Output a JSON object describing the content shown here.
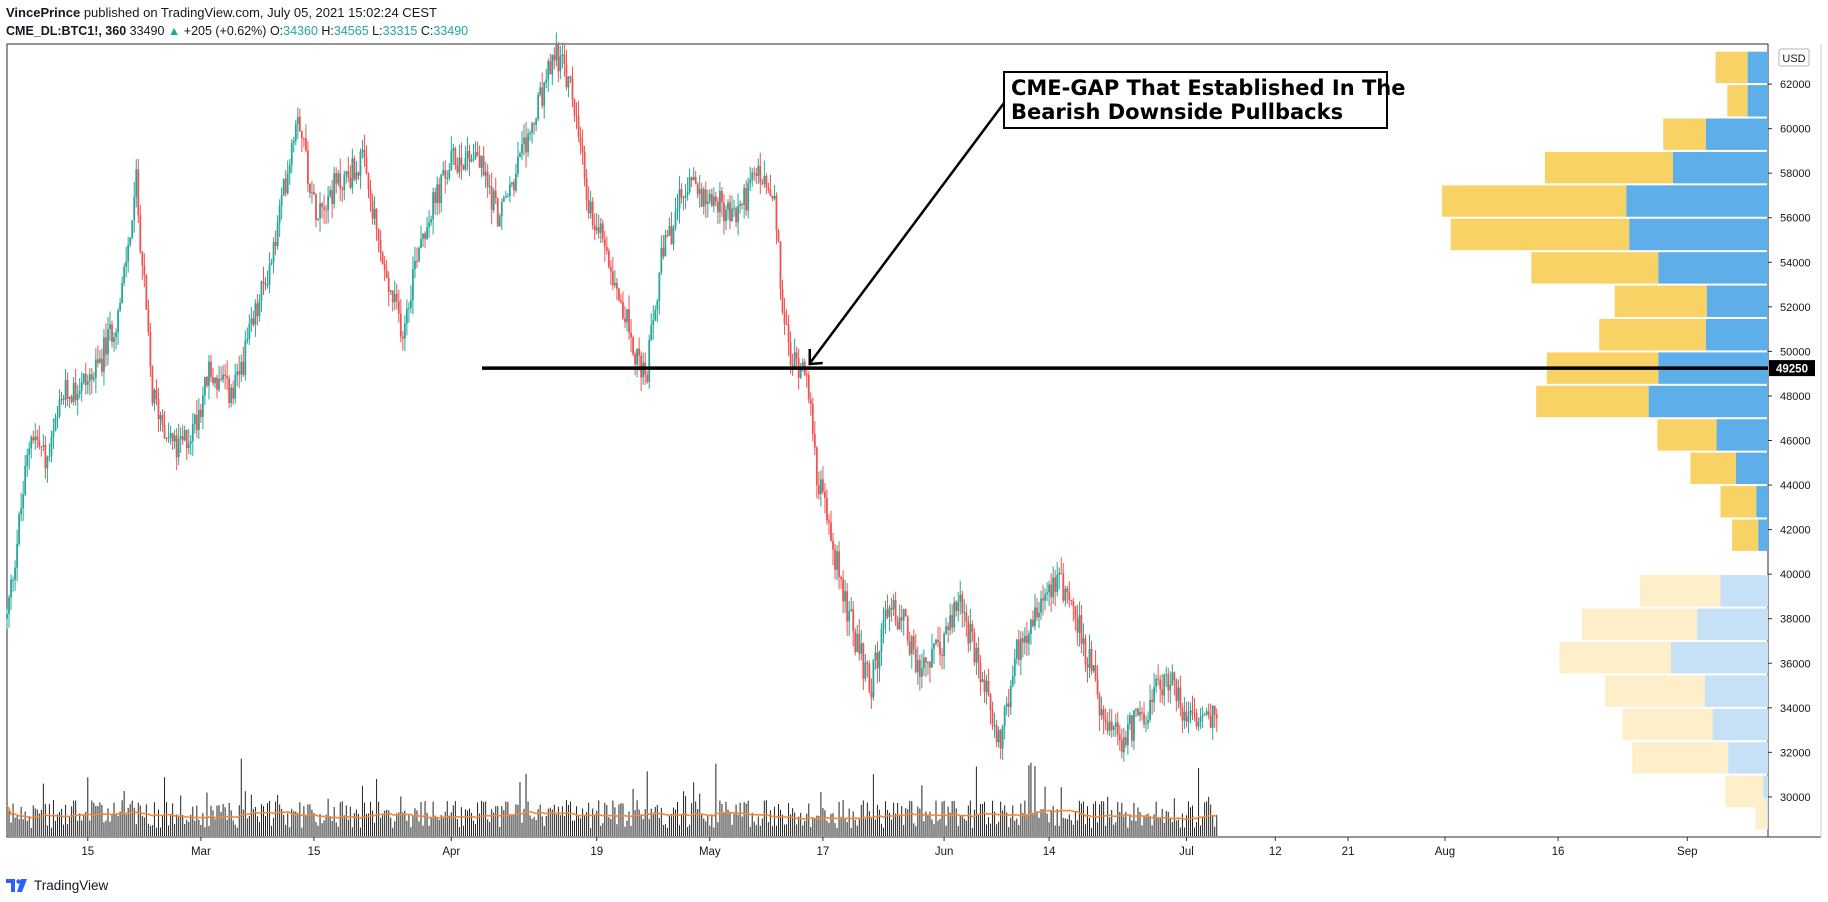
{
  "header": {
    "author": "VincePrince",
    "published_text": "published on TradingView.com, July 05, 2021 15:02:24 CEST",
    "symbol": "CME_DL:BTC1!, 360",
    "last": "33490",
    "change": "+205 (+0.62%)",
    "open_label": "O:",
    "open": "34360",
    "high_label": "H:",
    "high": "34565",
    "low_label": "L:",
    "low": "33315",
    "close_label": "C:",
    "close": "33490"
  },
  "footer": {
    "brand": "TradingView"
  },
  "colors": {
    "up": "#26a69a",
    "down": "#ef5350",
    "vp_up": "#5eaeea",
    "vp_down": "#f9d265",
    "vp_up_light": "#c6e1f5",
    "vp_down_light": "#fdefc9",
    "ma": "#f08a3c",
    "volume": "#222222"
  },
  "chart_data": {
    "type": "candlestick",
    "currency": "USD",
    "y_range": [
      28400,
      63500
    ],
    "y_ticks": [
      30000,
      32000,
      34000,
      36000,
      38000,
      40000,
      42000,
      44000,
      46000,
      48000,
      50000,
      52000,
      54000,
      56000,
      58000,
      60000,
      62000
    ],
    "x_ticks": [
      {
        "label": "15",
        "date": "2021-02-15"
      },
      {
        "label": "Mar",
        "date": "2021-03-01"
      },
      {
        "label": "15",
        "date": "2021-03-15"
      },
      {
        "label": "Apr",
        "date": "2021-04-01"
      },
      {
        "label": "19",
        "date": "2021-04-19"
      },
      {
        "label": "May",
        "date": "2021-05-03"
      },
      {
        "label": "17",
        "date": "2021-05-17"
      },
      {
        "label": "Jun",
        "date": "2021-06-01"
      },
      {
        "label": "14",
        "date": "2021-06-14"
      },
      {
        "label": "Jul",
        "date": "2021-07-01"
      },
      {
        "label": "12",
        "date": "2021-07-12"
      },
      {
        "label": "21",
        "date": "2021-07-21"
      },
      {
        "label": "Aug",
        "date": "2021-08-02"
      },
      {
        "label": "16",
        "date": "2021-08-16"
      },
      {
        "label": "Sep",
        "date": "2021-09-01"
      }
    ],
    "price_path": [
      {
        "date": "2021-02-05",
        "price": 38000
      },
      {
        "date": "2021-02-08",
        "price": 46500
      },
      {
        "date": "2021-02-10",
        "price": 45000
      },
      {
        "date": "2021-02-12",
        "price": 48000
      },
      {
        "date": "2021-02-16",
        "price": 49000
      },
      {
        "date": "2021-02-19",
        "price": 52000
      },
      {
        "date": "2021-02-21",
        "price": 57500
      },
      {
        "date": "2021-02-23",
        "price": 48000
      },
      {
        "date": "2021-02-26",
        "price": 45500
      },
      {
        "date": "2021-02-28",
        "price": 46500
      },
      {
        "date": "2021-03-02",
        "price": 49000
      },
      {
        "date": "2021-03-05",
        "price": 48000
      },
      {
        "date": "2021-03-10",
        "price": 54500
      },
      {
        "date": "2021-03-13",
        "price": 61000
      },
      {
        "date": "2021-03-15",
        "price": 56500
      },
      {
        "date": "2021-03-18",
        "price": 57500
      },
      {
        "date": "2021-03-21",
        "price": 58500
      },
      {
        "date": "2021-03-24",
        "price": 53000
      },
      {
        "date": "2021-03-26",
        "price": 51000
      },
      {
        "date": "2021-03-28",
        "price": 55000
      },
      {
        "date": "2021-04-01",
        "price": 58500
      },
      {
        "date": "2021-04-04",
        "price": 59000
      },
      {
        "date": "2021-04-07",
        "price": 56000
      },
      {
        "date": "2021-04-09",
        "price": 58000
      },
      {
        "date": "2021-04-11",
        "price": 60000
      },
      {
        "date": "2021-04-14",
        "price": 63500
      },
      {
        "date": "2021-04-16",
        "price": 61500
      },
      {
        "date": "2021-04-18",
        "price": 56500
      },
      {
        "date": "2021-04-20",
        "price": 55000
      },
      {
        "date": "2021-04-23",
        "price": 51000
      },
      {
        "date": "2021-04-25",
        "price": 48500
      },
      {
        "date": "2021-04-27",
        "price": 54000
      },
      {
        "date": "2021-04-30",
        "price": 57500
      },
      {
        "date": "2021-05-03",
        "price": 57000
      },
      {
        "date": "2021-05-06",
        "price": 56000
      },
      {
        "date": "2021-05-09",
        "price": 58000
      },
      {
        "date": "2021-05-11",
        "price": 56500
      },
      {
        "date": "2021-05-12",
        "price": 52000
      },
      {
        "date": "2021-05-13",
        "price": 49500
      },
      {
        "date": "2021-05-15",
        "price": 49500
      },
      {
        "date": "2021-05-16",
        "price": 45000
      },
      {
        "date": "2021-05-19",
        "price": 40000
      },
      {
        "date": "2021-05-21",
        "price": 37000
      },
      {
        "date": "2021-05-23",
        "price": 35000
      },
      {
        "date": "2021-05-25",
        "price": 38500
      },
      {
        "date": "2021-05-27",
        "price": 38000
      },
      {
        "date": "2021-05-29",
        "price": 35500
      },
      {
        "date": "2021-06-01",
        "price": 37000
      },
      {
        "date": "2021-06-03",
        "price": 39000
      },
      {
        "date": "2021-06-05",
        "price": 36000
      },
      {
        "date": "2021-06-08",
        "price": 32500
      },
      {
        "date": "2021-06-10",
        "price": 36500
      },
      {
        "date": "2021-06-13",
        "price": 39000
      },
      {
        "date": "2021-06-15",
        "price": 40000
      },
      {
        "date": "2021-06-17",
        "price": 38500
      },
      {
        "date": "2021-06-19",
        "price": 36000
      },
      {
        "date": "2021-06-21",
        "price": 33000
      },
      {
        "date": "2021-06-23",
        "price": 32500
      },
      {
        "date": "2021-06-25",
        "price": 33500
      },
      {
        "date": "2021-06-27",
        "price": 34500
      },
      {
        "date": "2021-06-29",
        "price": 35500
      },
      {
        "date": "2021-07-01",
        "price": 33500
      },
      {
        "date": "2021-07-02",
        "price": 33400
      },
      {
        "date": "2021-07-05",
        "price": 33490
      }
    ],
    "gap_level": 49250,
    "gap_level_label": "49250",
    "annotation": {
      "lines": [
        "CME-GAP That Established In The",
        "Bearish Downside Pullbacks"
      ],
      "arrow_date": "2021-05-15",
      "arrow_price": 49300
    },
    "volume_profile": {
      "upper_session": [
        {
          "price": 62750,
          "up": 21,
          "down": 33
        },
        {
          "price": 61250,
          "up": 21,
          "down": 21
        },
        {
          "price": 59750,
          "up": 64,
          "down": 44
        },
        {
          "price": 58250,
          "up": 98,
          "down": 132
        },
        {
          "price": 56750,
          "up": 146,
          "down": 190
        },
        {
          "price": 55250,
          "up": 143,
          "down": 184
        },
        {
          "price": 53750,
          "up": 113,
          "down": 131
        },
        {
          "price": 52250,
          "up": 63,
          "down": 95
        },
        {
          "price": 50750,
          "up": 64,
          "down": 110
        },
        {
          "price": 49250,
          "up": 113,
          "down": 115
        },
        {
          "price": 47750,
          "up": 123,
          "down": 116
        },
        {
          "price": 46250,
          "up": 53,
          "down": 61
        },
        {
          "price": 44750,
          "up": 33,
          "down": 47
        },
        {
          "price": 43250,
          "up": 12,
          "down": 37
        },
        {
          "price": 41750,
          "up": 10,
          "down": 27
        }
      ],
      "lower_session": [
        {
          "price": 39250,
          "up": 49,
          "down": 83
        },
        {
          "price": 37750,
          "up": 73,
          "down": 119
        },
        {
          "price": 36250,
          "up": 100,
          "down": 115
        },
        {
          "price": 34750,
          "up": 65,
          "down": 103
        },
        {
          "price": 33250,
          "up": 57,
          "down": 93
        },
        {
          "price": 31750,
          "up": 41,
          "down": 99
        },
        {
          "price": 30250,
          "up": 5,
          "down": 39
        },
        {
          "price": 29250,
          "up": 1,
          "down": 12
        }
      ]
    }
  }
}
